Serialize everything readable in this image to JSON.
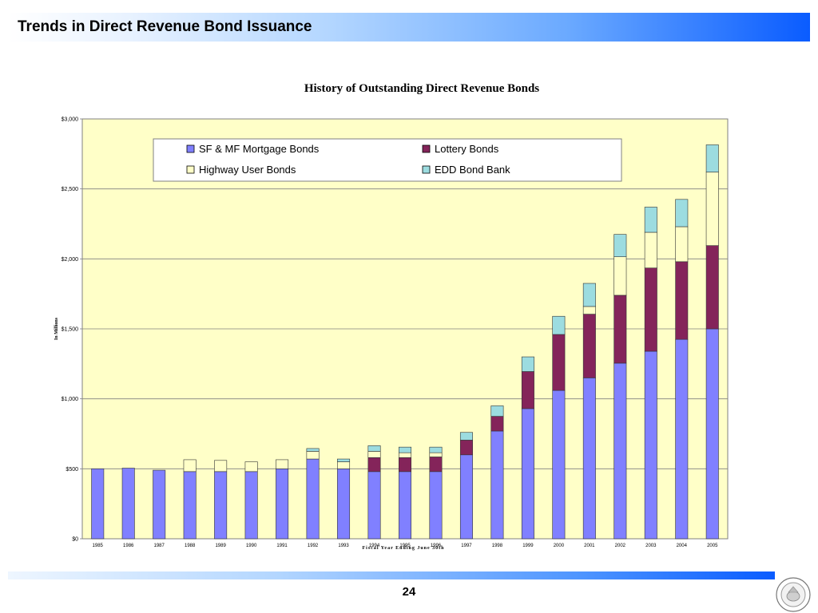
{
  "slide": {
    "title": "Trends in Direct Revenue Bond Issuance",
    "page_number": "24",
    "seal_icon": "state-seal-icon"
  },
  "colors": {
    "plot_bg": "#ffffc8",
    "sf_mf": "#8080ff",
    "lottery": "#84245a",
    "highway": "#ffffc8",
    "edd": "#9cdce0",
    "title_bar_end": "#0a5cff"
  },
  "chart_data": {
    "type": "bar",
    "stacked": true,
    "title": "History of Outstanding Direct Revenue Bonds",
    "xlabel": "Fiscal Year Ending June 30th",
    "ylabel": "In Millions",
    "ylim": [
      0,
      3000
    ],
    "y_ticks": [
      "$0",
      "$500",
      "$1,000",
      "$1,500",
      "$2,000",
      "$2,500",
      "$3,000"
    ],
    "grid": true,
    "legend_position": "top",
    "categories": [
      "1985",
      "1986",
      "1987",
      "1988",
      "1989",
      "1990",
      "1991",
      "1992",
      "1993",
      "1994",
      "1995",
      "1996",
      "1997",
      "1998",
      "1999",
      "2000",
      "2001",
      "2002",
      "2003",
      "2004",
      "2005"
    ],
    "series": [
      {
        "name": "SF & MF Mortgage Bonds",
        "color": "#8080ff",
        "values": [
          500,
          505,
          490,
          480,
          480,
          480,
          500,
          570,
          500,
          480,
          480,
          480,
          600,
          770,
          930,
          1060,
          1150,
          1255,
          1340,
          1425,
          1500
        ]
      },
      {
        "name": "Lottery Bonds",
        "color": "#84245a",
        "values": [
          0,
          0,
          0,
          0,
          0,
          0,
          0,
          0,
          0,
          100,
          100,
          105,
          105,
          105,
          265,
          400,
          455,
          485,
          595,
          555,
          595
        ]
      },
      {
        "name": "Highway User Bonds",
        "color": "#ffffc8",
        "values": [
          0,
          0,
          0,
          85,
          80,
          70,
          65,
          55,
          50,
          45,
          35,
          30,
          0,
          0,
          0,
          0,
          55,
          275,
          255,
          250,
          525
        ]
      },
      {
        "name": "EDD Bond Bank",
        "color": "#9cdce0",
        "values": [
          0,
          0,
          0,
          0,
          0,
          0,
          0,
          20,
          20,
          40,
          40,
          40,
          55,
          75,
          105,
          130,
          165,
          160,
          180,
          195,
          195
        ]
      }
    ]
  }
}
